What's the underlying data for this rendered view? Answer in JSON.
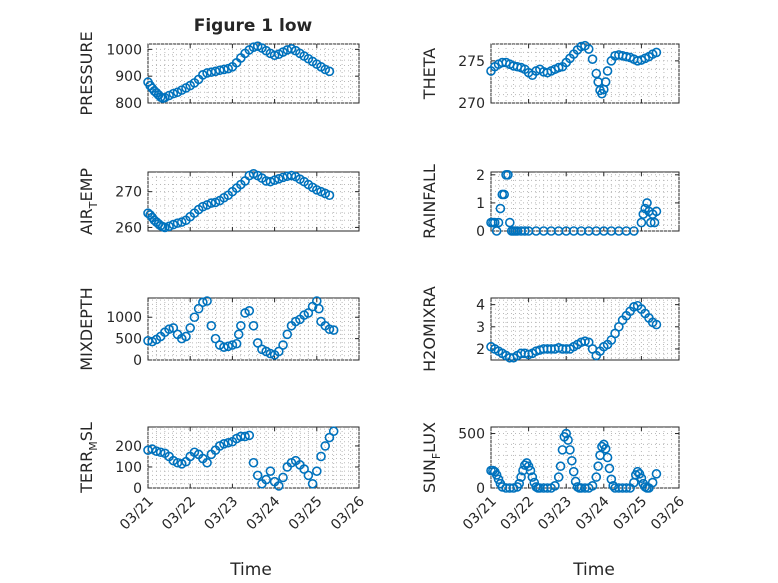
{
  "figure": {
    "title": "Figure 1 low",
    "xlabel": "Time",
    "marker_color": "#0072bd",
    "x_tick_labels": [
      "03/21",
      "03/22",
      "03/23",
      "03/24",
      "03/25",
      "03/26"
    ]
  },
  "chart_data": [
    {
      "type": "scatter",
      "id": "pressure",
      "ylabel_parts": [
        "PRESSURE"
      ],
      "yticks": [
        800,
        900,
        1000
      ],
      "ylim": [
        800,
        1020
      ],
      "x_day_range": [
        21,
        26
      ],
      "grid": true,
      "x": [
        21.0,
        21.05,
        21.1,
        21.15,
        21.2,
        21.25,
        21.3,
        21.35,
        21.4,
        21.5,
        21.6,
        21.7,
        21.8,
        21.9,
        22.0,
        22.1,
        22.2,
        22.3,
        22.4,
        22.5,
        22.6,
        22.7,
        22.8,
        22.9,
        23.0,
        23.1,
        23.2,
        23.3,
        23.4,
        23.5,
        23.6,
        23.7,
        23.8,
        23.9,
        24.0,
        24.1,
        24.2,
        24.3,
        24.4,
        24.5,
        24.6,
        24.7,
        24.8,
        24.9,
        25.0,
        25.1,
        25.2,
        25.3
      ],
      "y": [
        878,
        865,
        855,
        845,
        838,
        830,
        822,
        818,
        820,
        828,
        835,
        840,
        848,
        856,
        865,
        875,
        888,
        905,
        912,
        915,
        918,
        922,
        925,
        928,
        935,
        950,
        968,
        985,
        998,
        1008,
        1012,
        1005,
        995,
        985,
        978,
        982,
        990,
        998,
        1002,
        995,
        985,
        975,
        965,
        955,
        945,
        935,
        925,
        918
      ]
    },
    {
      "type": "scatter",
      "id": "theta",
      "ylabel_parts": [
        "THETA"
      ],
      "yticks": [
        270,
        275
      ],
      "ylim": [
        270,
        277
      ],
      "x_day_range": [
        21,
        26
      ],
      "grid": true,
      "x": [
        21.0,
        21.1,
        21.2,
        21.3,
        21.4,
        21.5,
        21.6,
        21.7,
        21.8,
        21.9,
        22.0,
        22.1,
        22.2,
        22.3,
        22.4,
        22.5,
        22.6,
        22.7,
        22.8,
        22.9,
        23.0,
        23.1,
        23.2,
        23.3,
        23.4,
        23.5,
        23.6,
        23.7,
        23.8,
        23.85,
        23.9,
        23.95,
        24.0,
        24.05,
        24.1,
        24.2,
        24.3,
        24.4,
        24.5,
        24.6,
        24.7,
        24.8,
        24.9,
        25.0,
        25.1,
        25.2,
        25.3,
        25.4
      ],
      "y": [
        273.8,
        274.3,
        274.6,
        274.8,
        274.8,
        274.6,
        274.4,
        274.3,
        274.2,
        274.0,
        273.6,
        273.3,
        273.8,
        274.0,
        273.7,
        273.6,
        273.8,
        274.0,
        274.2,
        274.3,
        274.8,
        275.3,
        275.8,
        276.3,
        276.7,
        276.8,
        276.4,
        275.2,
        273.5,
        272.5,
        271.5,
        271.1,
        271.6,
        272.5,
        273.8,
        275.0,
        275.6,
        275.7,
        275.6,
        275.5,
        275.4,
        275.2,
        275.0,
        275.1,
        275.3,
        275.5,
        275.8,
        276.0
      ]
    },
    {
      "type": "scatter",
      "id": "air_temp",
      "ylabel_parts": [
        "AIR",
        "T",
        "EMP"
      ],
      "yticks": [
        260,
        270
      ],
      "ylim": [
        259,
        275.5
      ],
      "x_day_range": [
        21,
        26
      ],
      "grid": true,
      "x": [
        21.0,
        21.05,
        21.1,
        21.15,
        21.2,
        21.25,
        21.3,
        21.35,
        21.4,
        21.5,
        21.6,
        21.7,
        21.8,
        21.9,
        22.0,
        22.1,
        22.2,
        22.3,
        22.4,
        22.5,
        22.6,
        22.7,
        22.8,
        22.9,
        23.0,
        23.1,
        23.2,
        23.3,
        23.4,
        23.5,
        23.6,
        23.7,
        23.8,
        23.9,
        24.0,
        24.1,
        24.2,
        24.3,
        24.4,
        24.5,
        24.6,
        24.7,
        24.8,
        24.9,
        25.0,
        25.1,
        25.2,
        25.3
      ],
      "y": [
        264.0,
        263.5,
        262.8,
        262.0,
        261.5,
        261.0,
        260.5,
        260.2,
        260.0,
        260.3,
        260.8,
        261.2,
        261.5,
        262.0,
        263.0,
        264.0,
        265.0,
        265.8,
        266.3,
        266.8,
        267.0,
        267.5,
        268.3,
        269.0,
        270.0,
        271.0,
        272.0,
        273.0,
        274.5,
        275.0,
        274.5,
        273.8,
        273.0,
        272.8,
        273.2,
        273.6,
        274.0,
        274.3,
        274.5,
        274.2,
        273.5,
        272.8,
        272.0,
        271.2,
        270.5,
        270.0,
        269.5,
        269.0
      ]
    },
    {
      "type": "scatter",
      "id": "rainfall",
      "ylabel_parts": [
        "RAINFALL"
      ],
      "yticks": [
        0,
        1,
        2
      ],
      "ylim": [
        0,
        2.1
      ],
      "x_day_range": [
        21,
        26
      ],
      "grid": true,
      "x": [
        21.0,
        21.05,
        21.1,
        21.15,
        21.2,
        21.25,
        21.3,
        21.35,
        21.4,
        21.45,
        21.5,
        21.55,
        21.6,
        21.65,
        21.7,
        21.8,
        21.9,
        22.0,
        22.2,
        22.4,
        22.6,
        22.8,
        23.0,
        23.2,
        23.4,
        23.6,
        23.8,
        24.0,
        24.2,
        24.4,
        24.6,
        24.8,
        25.0,
        25.05,
        25.1,
        25.15,
        25.2,
        25.25,
        25.3,
        25.35,
        25.4
      ],
      "y": [
        0.3,
        0.3,
        0.3,
        0.0,
        0.3,
        0.8,
        1.3,
        1.3,
        2.0,
        2.0,
        0.3,
        0.0,
        0.0,
        0.0,
        0.0,
        0.0,
        0.0,
        0.0,
        0.0,
        0.0,
        0.0,
        0.0,
        0.0,
        0.0,
        0.0,
        0.0,
        0.0,
        0.0,
        0.0,
        0.0,
        0.0,
        0.0,
        0.3,
        0.6,
        0.8,
        1.0,
        0.7,
        0.3,
        0.6,
        0.3,
        0.7
      ]
    },
    {
      "type": "scatter",
      "id": "mixdepth",
      "ylabel_parts": [
        "MIXDEPTH"
      ],
      "yticks": [
        0,
        500,
        1000
      ],
      "ylim": [
        0,
        1450
      ],
      "x_day_range": [
        21,
        26
      ],
      "grid": true,
      "x": [
        21.0,
        21.1,
        21.2,
        21.3,
        21.4,
        21.5,
        21.6,
        21.7,
        21.8,
        21.9,
        22.0,
        22.1,
        22.2,
        22.3,
        22.4,
        22.5,
        22.6,
        22.7,
        22.8,
        22.9,
        23.0,
        23.1,
        23.15,
        23.2,
        23.3,
        23.4,
        23.5,
        23.6,
        23.7,
        23.8,
        23.9,
        24.0,
        24.1,
        24.2,
        24.3,
        24.4,
        24.5,
        24.6,
        24.7,
        24.8,
        24.9,
        25.0,
        25.05,
        25.1,
        25.2,
        25.3,
        25.4
      ],
      "y": [
        450,
        430,
        480,
        550,
        650,
        720,
        750,
        600,
        500,
        550,
        750,
        1000,
        1200,
        1350,
        1380,
        800,
        500,
        350,
        300,
        320,
        350,
        380,
        600,
        800,
        1100,
        1150,
        800,
        400,
        250,
        200,
        150,
        120,
        200,
        350,
        600,
        800,
        900,
        950,
        1050,
        1100,
        1250,
        1380,
        1200,
        900,
        800,
        720,
        700
      ]
    },
    {
      "type": "scatter",
      "id": "h2omixra",
      "ylabel_parts": [
        "H2OMIXRA"
      ],
      "yticks": [
        2,
        3,
        4
      ],
      "ylim": [
        1.5,
        4.3
      ],
      "x_day_range": [
        21,
        26
      ],
      "grid": true,
      "x": [
        21.0,
        21.1,
        21.2,
        21.3,
        21.4,
        21.5,
        21.6,
        21.7,
        21.8,
        21.9,
        22.0,
        22.1,
        22.2,
        22.3,
        22.4,
        22.5,
        22.6,
        22.7,
        22.8,
        22.9,
        23.0,
        23.1,
        23.2,
        23.3,
        23.4,
        23.5,
        23.6,
        23.7,
        23.8,
        23.9,
        24.0,
        24.1,
        24.2,
        24.3,
        24.4,
        24.5,
        24.6,
        24.7,
        24.8,
        24.9,
        25.0,
        25.1,
        25.2,
        25.3,
        25.4
      ],
      "y": [
        2.1,
        2.0,
        1.9,
        1.8,
        1.7,
        1.6,
        1.6,
        1.7,
        1.8,
        1.8,
        1.75,
        1.8,
        1.9,
        1.95,
        2.0,
        2.0,
        2.0,
        2.0,
        2.05,
        2.0,
        2.0,
        2.0,
        2.1,
        2.2,
        2.3,
        2.35,
        2.3,
        2.0,
        1.7,
        1.9,
        2.1,
        2.2,
        2.4,
        2.7,
        3.0,
        3.3,
        3.5,
        3.7,
        3.9,
        3.95,
        3.8,
        3.6,
        3.4,
        3.2,
        3.1
      ]
    },
    {
      "type": "scatter",
      "id": "terr_msl",
      "ylabel_parts": [
        "TERR",
        "M",
        "SL"
      ],
      "yticks": [
        0,
        100,
        200
      ],
      "ylim": [
        0,
        290
      ],
      "x_day_range": [
        21,
        26
      ],
      "grid": true,
      "x": [
        21.0,
        21.1,
        21.2,
        21.3,
        21.4,
        21.5,
        21.6,
        21.7,
        21.8,
        21.9,
        22.0,
        22.1,
        22.2,
        22.3,
        22.4,
        22.5,
        22.6,
        22.7,
        22.8,
        22.9,
        23.0,
        23.1,
        23.2,
        23.3,
        23.4,
        23.5,
        23.6,
        23.7,
        23.8,
        23.9,
        24.0,
        24.1,
        24.2,
        24.3,
        24.4,
        24.5,
        24.6,
        24.7,
        24.8,
        24.9,
        25.0,
        25.1,
        25.2,
        25.3,
        25.4
      ],
      "y": [
        180,
        185,
        175,
        170,
        165,
        150,
        130,
        120,
        115,
        125,
        150,
        170,
        160,
        140,
        120,
        160,
        180,
        200,
        210,
        215,
        220,
        235,
        245,
        245,
        250,
        120,
        60,
        20,
        40,
        80,
        30,
        10,
        50,
        100,
        120,
        130,
        110,
        90,
        60,
        20,
        80,
        150,
        200,
        240,
        270
      ]
    },
    {
      "type": "scatter",
      "id": "sun_flux",
      "ylabel_parts": [
        "SUN",
        "F",
        "LUX"
      ],
      "yticks": [
        0,
        500
      ],
      "ylim": [
        0,
        560
      ],
      "x_day_range": [
        21,
        26
      ],
      "grid": true,
      "x": [
        21.0,
        21.05,
        21.1,
        21.15,
        21.2,
        21.25,
        21.3,
        21.4,
        21.5,
        21.6,
        21.7,
        21.75,
        21.8,
        21.85,
        21.9,
        21.95,
        22.0,
        22.05,
        22.1,
        22.15,
        22.2,
        22.25,
        22.3,
        22.4,
        22.5,
        22.6,
        22.7,
        22.8,
        22.85,
        22.9,
        22.95,
        23.0,
        23.05,
        23.1,
        23.15,
        23.2,
        23.25,
        23.3,
        23.35,
        23.4,
        23.5,
        23.6,
        23.7,
        23.8,
        23.85,
        23.9,
        23.95,
        24.0,
        24.05,
        24.1,
        24.15,
        24.2,
        24.25,
        24.3,
        24.4,
        24.5,
        24.6,
        24.7,
        24.8,
        24.85,
        24.9,
        24.95,
        25.0,
        25.05,
        25.1,
        25.15,
        25.2,
        25.3,
        25.4
      ],
      "y": [
        160,
        160,
        150,
        120,
        80,
        40,
        10,
        0,
        0,
        0,
        10,
        40,
        100,
        160,
        210,
        230,
        200,
        160,
        100,
        50,
        10,
        0,
        0,
        0,
        0,
        0,
        20,
        100,
        200,
        350,
        470,
        500,
        440,
        350,
        250,
        150,
        60,
        10,
        0,
        0,
        0,
        0,
        20,
        100,
        200,
        300,
        380,
        400,
        360,
        280,
        180,
        80,
        20,
        0,
        0,
        0,
        0,
        0,
        50,
        120,
        150,
        130,
        90,
        40,
        10,
        0,
        0,
        50,
        130
      ]
    }
  ]
}
